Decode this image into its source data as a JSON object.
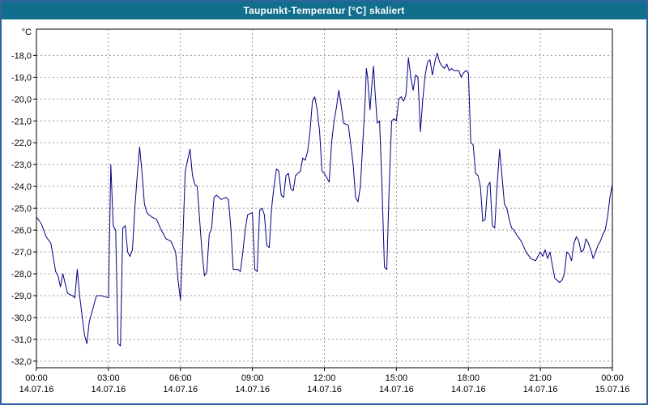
{
  "window": {
    "title": "Taupunkt-Temperatur [°C] skaliert"
  },
  "colors": {
    "title_bar_bg": "#116e8c",
    "title_text": "#ffffff",
    "frame_border": "#31639c",
    "plot_bg": "#ffffff",
    "plot_border": "#000000",
    "grid": "#9a9a9a",
    "line": "#000080",
    "tick_text": "#000000"
  },
  "chart_data": {
    "type": "line",
    "title": "Taupunkt-Temperatur [°C] skaliert",
    "y_unit": "°C",
    "xlabel": "",
    "ylabel": "Taupunkt-Temperatur [°C]",
    "grid": true,
    "legend": "none",
    "xlim": [
      0,
      24
    ],
    "ylim": [
      -32.3,
      -16.8
    ],
    "y_ticks": [
      {
        "value": -18,
        "label": "-18,0"
      },
      {
        "value": -19,
        "label": "-19,0"
      },
      {
        "value": -20,
        "label": "-20,0"
      },
      {
        "value": -21,
        "label": "-21,0"
      },
      {
        "value": -22,
        "label": "-22,0"
      },
      {
        "value": -23,
        "label": "-23,0"
      },
      {
        "value": -24,
        "label": "-24,0"
      },
      {
        "value": -25,
        "label": "-25,0"
      },
      {
        "value": -26,
        "label": "-26,0"
      },
      {
        "value": -27,
        "label": "-27,0"
      },
      {
        "value": -28,
        "label": "-28,0"
      },
      {
        "value": -29,
        "label": "-29,0"
      },
      {
        "value": -30,
        "label": "-30,0"
      },
      {
        "value": -31,
        "label": "-31,0"
      },
      {
        "value": -32,
        "label": "-32,0"
      }
    ],
    "x_ticks": [
      {
        "hour": 0,
        "time": "00:00",
        "date": "14.07.16"
      },
      {
        "hour": 3,
        "time": "03:00",
        "date": "14.07.16"
      },
      {
        "hour": 6,
        "time": "06:00",
        "date": "14.07.16"
      },
      {
        "hour": 9,
        "time": "09:00",
        "date": "14.07.16"
      },
      {
        "hour": 12,
        "time": "12:00",
        "date": "14.07.16"
      },
      {
        "hour": 15,
        "time": "15:00",
        "date": "14.07.16"
      },
      {
        "hour": 18,
        "time": "18:00",
        "date": "14.07.16"
      },
      {
        "hour": 21,
        "time": "21:00",
        "date": "14.07.16"
      },
      {
        "hour": 24,
        "time": "00:00",
        "date": "15.07.16"
      }
    ],
    "series": [
      {
        "name": "Taupunkt-Temperatur",
        "color": "#000080",
        "points": [
          [
            0,
            -25.4
          ],
          [
            0.2,
            -25.7
          ],
          [
            0.4,
            -26.3
          ],
          [
            0.6,
            -26.6
          ],
          [
            0.8,
            -27.9
          ],
          [
            0.9,
            -28.1
          ],
          [
            1,
            -28.6
          ],
          [
            1.1,
            -28.0
          ],
          [
            1.3,
            -28.9
          ],
          [
            1.5,
            -29.0
          ],
          [
            1.6,
            -29.1
          ],
          [
            1.7,
            -27.8
          ],
          [
            1.8,
            -29.0
          ],
          [
            2,
            -30.8
          ],
          [
            2.1,
            -31.2
          ],
          [
            2.2,
            -30.2
          ],
          [
            2.4,
            -29.4
          ],
          [
            2.5,
            -29.0
          ],
          [
            2.7,
            -29.0
          ],
          [
            3,
            -29.1
          ],
          [
            3.1,
            -23.0
          ],
          [
            3.2,
            -25.8
          ],
          [
            3.3,
            -26.0
          ],
          [
            3.4,
            -31.2
          ],
          [
            3.5,
            -31.3
          ],
          [
            3.6,
            -25.9
          ],
          [
            3.7,
            -25.8
          ],
          [
            3.8,
            -27.0
          ],
          [
            3.9,
            -27.2
          ],
          [
            4,
            -26.9
          ],
          [
            4.1,
            -25.0
          ],
          [
            4.2,
            -23.5
          ],
          [
            4.3,
            -22.2
          ],
          [
            4.4,
            -23.4
          ],
          [
            4.5,
            -24.8
          ],
          [
            4.6,
            -25.2
          ],
          [
            4.8,
            -25.4
          ],
          [
            5,
            -25.5
          ],
          [
            5.2,
            -26.0
          ],
          [
            5.4,
            -26.4
          ],
          [
            5.6,
            -26.5
          ],
          [
            5.8,
            -27.0
          ],
          [
            5.9,
            -28.3
          ],
          [
            6,
            -29.2
          ],
          [
            6.1,
            -26.5
          ],
          [
            6.2,
            -23.3
          ],
          [
            6.3,
            -22.8
          ],
          [
            6.4,
            -22.3
          ],
          [
            6.5,
            -23.5
          ],
          [
            6.6,
            -23.9
          ],
          [
            6.7,
            -24.0
          ],
          [
            6.8,
            -25.5
          ],
          [
            6.9,
            -27.0
          ],
          [
            7,
            -28.1
          ],
          [
            7.1,
            -27.9
          ],
          [
            7.2,
            -26.2
          ],
          [
            7.3,
            -25.9
          ],
          [
            7.4,
            -24.5
          ],
          [
            7.5,
            -24.4
          ],
          [
            7.7,
            -24.6
          ],
          [
            7.9,
            -24.5
          ],
          [
            8,
            -24.6
          ],
          [
            8.1,
            -25.9
          ],
          [
            8.2,
            -27.8
          ],
          [
            8.4,
            -27.8
          ],
          [
            8.5,
            -27.9
          ],
          [
            8.6,
            -27.0
          ],
          [
            8.7,
            -26.0
          ],
          [
            8.8,
            -25.3
          ],
          [
            9,
            -25.2
          ],
          [
            9.1,
            -27.8
          ],
          [
            9.2,
            -27.9
          ],
          [
            9.3,
            -25.1
          ],
          [
            9.4,
            -25.0
          ],
          [
            9.5,
            -25.3
          ],
          [
            9.6,
            -26.7
          ],
          [
            9.7,
            -26.8
          ],
          [
            9.8,
            -25.0
          ],
          [
            9.9,
            -24.0
          ],
          [
            10,
            -23.2
          ],
          [
            10.1,
            -23.3
          ],
          [
            10.2,
            -24.4
          ],
          [
            10.3,
            -24.5
          ],
          [
            10.4,
            -23.5
          ],
          [
            10.5,
            -23.4
          ],
          [
            10.6,
            -24.1
          ],
          [
            10.7,
            -24.2
          ],
          [
            10.8,
            -23.5
          ],
          [
            10.9,
            -23.4
          ],
          [
            11,
            -23.3
          ],
          [
            11.1,
            -22.7
          ],
          [
            11.2,
            -22.8
          ],
          [
            11.3,
            -22.4
          ],
          [
            11.4,
            -21.5
          ],
          [
            11.5,
            -20.1
          ],
          [
            11.6,
            -19.9
          ],
          [
            11.7,
            -20.5
          ],
          [
            11.8,
            -21.5
          ],
          [
            11.9,
            -23.3
          ],
          [
            12,
            -23.4
          ],
          [
            12.1,
            -23.6
          ],
          [
            12.2,
            -23.8
          ],
          [
            12.3,
            -22.0
          ],
          [
            12.4,
            -21.0
          ],
          [
            12.5,
            -20.4
          ],
          [
            12.6,
            -19.6
          ],
          [
            12.7,
            -20.3
          ],
          [
            12.8,
            -21.1
          ],
          [
            13,
            -21.2
          ],
          [
            13.1,
            -22.1
          ],
          [
            13.2,
            -23.0
          ],
          [
            13.3,
            -24.5
          ],
          [
            13.4,
            -24.7
          ],
          [
            13.5,
            -24.0
          ],
          [
            13.6,
            -22.0
          ],
          [
            13.7,
            -20.0
          ],
          [
            13.75,
            -18.6
          ],
          [
            13.8,
            -19.0
          ],
          [
            13.9,
            -20.5
          ],
          [
            14,
            -19.0
          ],
          [
            14.05,
            -18.5
          ],
          [
            14.1,
            -19.5
          ],
          [
            14.2,
            -21.1
          ],
          [
            14.3,
            -21.0
          ],
          [
            14.4,
            -24.0
          ],
          [
            14.5,
            -27.7
          ],
          [
            14.6,
            -27.8
          ],
          [
            14.7,
            -24.0
          ],
          [
            14.8,
            -21.0
          ],
          [
            14.9,
            -20.9
          ],
          [
            15,
            -21.0
          ],
          [
            15.1,
            -20.0
          ],
          [
            15.2,
            -19.9
          ],
          [
            15.3,
            -20.1
          ],
          [
            15.4,
            -19.8
          ],
          [
            15.5,
            -18.1
          ],
          [
            15.6,
            -19.0
          ],
          [
            15.7,
            -19.6
          ],
          [
            15.8,
            -18.9
          ],
          [
            15.9,
            -19.0
          ],
          [
            16,
            -21.5
          ],
          [
            16.1,
            -20.0
          ],
          [
            16.2,
            -18.9
          ],
          [
            16.3,
            -18.3
          ],
          [
            16.4,
            -18.2
          ],
          [
            16.5,
            -18.9
          ],
          [
            16.6,
            -18.3
          ],
          [
            16.7,
            -17.9
          ],
          [
            16.8,
            -18.3
          ],
          [
            16.9,
            -18.5
          ],
          [
            17,
            -18.6
          ],
          [
            17.1,
            -18.4
          ],
          [
            17.2,
            -18.7
          ],
          [
            17.3,
            -18.6
          ],
          [
            17.4,
            -18.7
          ],
          [
            17.6,
            -18.7
          ],
          [
            17.7,
            -19.0
          ],
          [
            17.8,
            -18.8
          ],
          [
            17.9,
            -18.7
          ],
          [
            18,
            -18.8
          ],
          [
            18.1,
            -22.0
          ],
          [
            18.2,
            -22.1
          ],
          [
            18.3,
            -23.4
          ],
          [
            18.4,
            -23.5
          ],
          [
            18.5,
            -24.0
          ],
          [
            18.6,
            -25.6
          ],
          [
            18.7,
            -25.5
          ],
          [
            18.8,
            -24.0
          ],
          [
            18.9,
            -23.8
          ],
          [
            19,
            -25.8
          ],
          [
            19.1,
            -25.9
          ],
          [
            19.2,
            -23.9
          ],
          [
            19.3,
            -22.3
          ],
          [
            19.4,
            -23.5
          ],
          [
            19.5,
            -24.8
          ],
          [
            19.6,
            -25.0
          ],
          [
            19.7,
            -25.5
          ],
          [
            19.8,
            -25.9
          ],
          [
            19.9,
            -26.0
          ],
          [
            20,
            -26.2
          ],
          [
            20.2,
            -26.5
          ],
          [
            20.4,
            -27.0
          ],
          [
            20.6,
            -27.3
          ],
          [
            20.8,
            -27.4
          ],
          [
            21,
            -27.0
          ],
          [
            21.1,
            -27.2
          ],
          [
            21.2,
            -26.9
          ],
          [
            21.3,
            -27.3
          ],
          [
            21.4,
            -27.0
          ],
          [
            21.5,
            -27.6
          ],
          [
            21.6,
            -28.2
          ],
          [
            21.8,
            -28.4
          ],
          [
            21.9,
            -28.3
          ],
          [
            22,
            -28.0
          ],
          [
            22.1,
            -27.0
          ],
          [
            22.2,
            -27.1
          ],
          [
            22.3,
            -27.4
          ],
          [
            22.4,
            -26.6
          ],
          [
            22.5,
            -26.3
          ],
          [
            22.6,
            -26.5
          ],
          [
            22.7,
            -27.0
          ],
          [
            22.8,
            -26.9
          ],
          [
            22.9,
            -26.4
          ],
          [
            23,
            -26.6
          ],
          [
            23.1,
            -26.9
          ],
          [
            23.2,
            -27.3
          ],
          [
            23.3,
            -27.0
          ],
          [
            23.4,
            -26.7
          ],
          [
            23.5,
            -26.5
          ],
          [
            23.6,
            -26.2
          ],
          [
            23.7,
            -26.0
          ],
          [
            23.8,
            -25.4
          ],
          [
            23.9,
            -24.5
          ],
          [
            24,
            -23.9
          ]
        ]
      }
    ]
  }
}
